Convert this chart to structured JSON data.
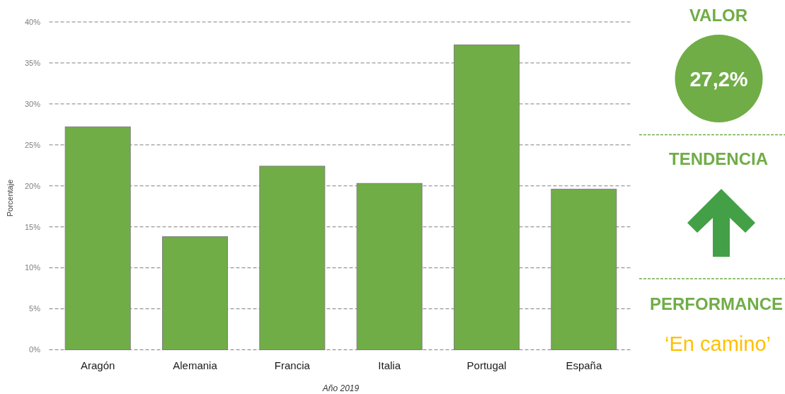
{
  "chart_data": [
    {
      "type": "bar",
      "xlabel": "Año 2019",
      "ylabel": "Porcentaje",
      "categories": [
        "Aragón",
        "Alemania",
        "Francia",
        "Italia",
        "Portugal",
        "España"
      ],
      "values": [
        27.2,
        13.8,
        22.4,
        20.3,
        37.2,
        19.6
      ],
      "color": "#70ad47",
      "ylim": [
        0,
        40
      ],
      "yticks": [
        {
          "value": 0,
          "label": "0%"
        },
        {
          "value": 5,
          "label": "5%"
        },
        {
          "value": 10,
          "label": "10%"
        },
        {
          "value": 15,
          "label": "15%"
        },
        {
          "value": 20,
          "label": "20%"
        },
        {
          "value": 25,
          "label": "25%"
        },
        {
          "value": 30,
          "label": "30%"
        },
        {
          "value": 35,
          "label": "35%"
        },
        {
          "value": 40,
          "label": "40%"
        }
      ],
      "grid": "y"
    },
    {
      "type": "other",
      "annotations": [
        "VALOR",
        "27,2%",
        "TENDENCIA",
        "PERFORMANCE",
        "‘En camino’"
      ]
    }
  ]
}
